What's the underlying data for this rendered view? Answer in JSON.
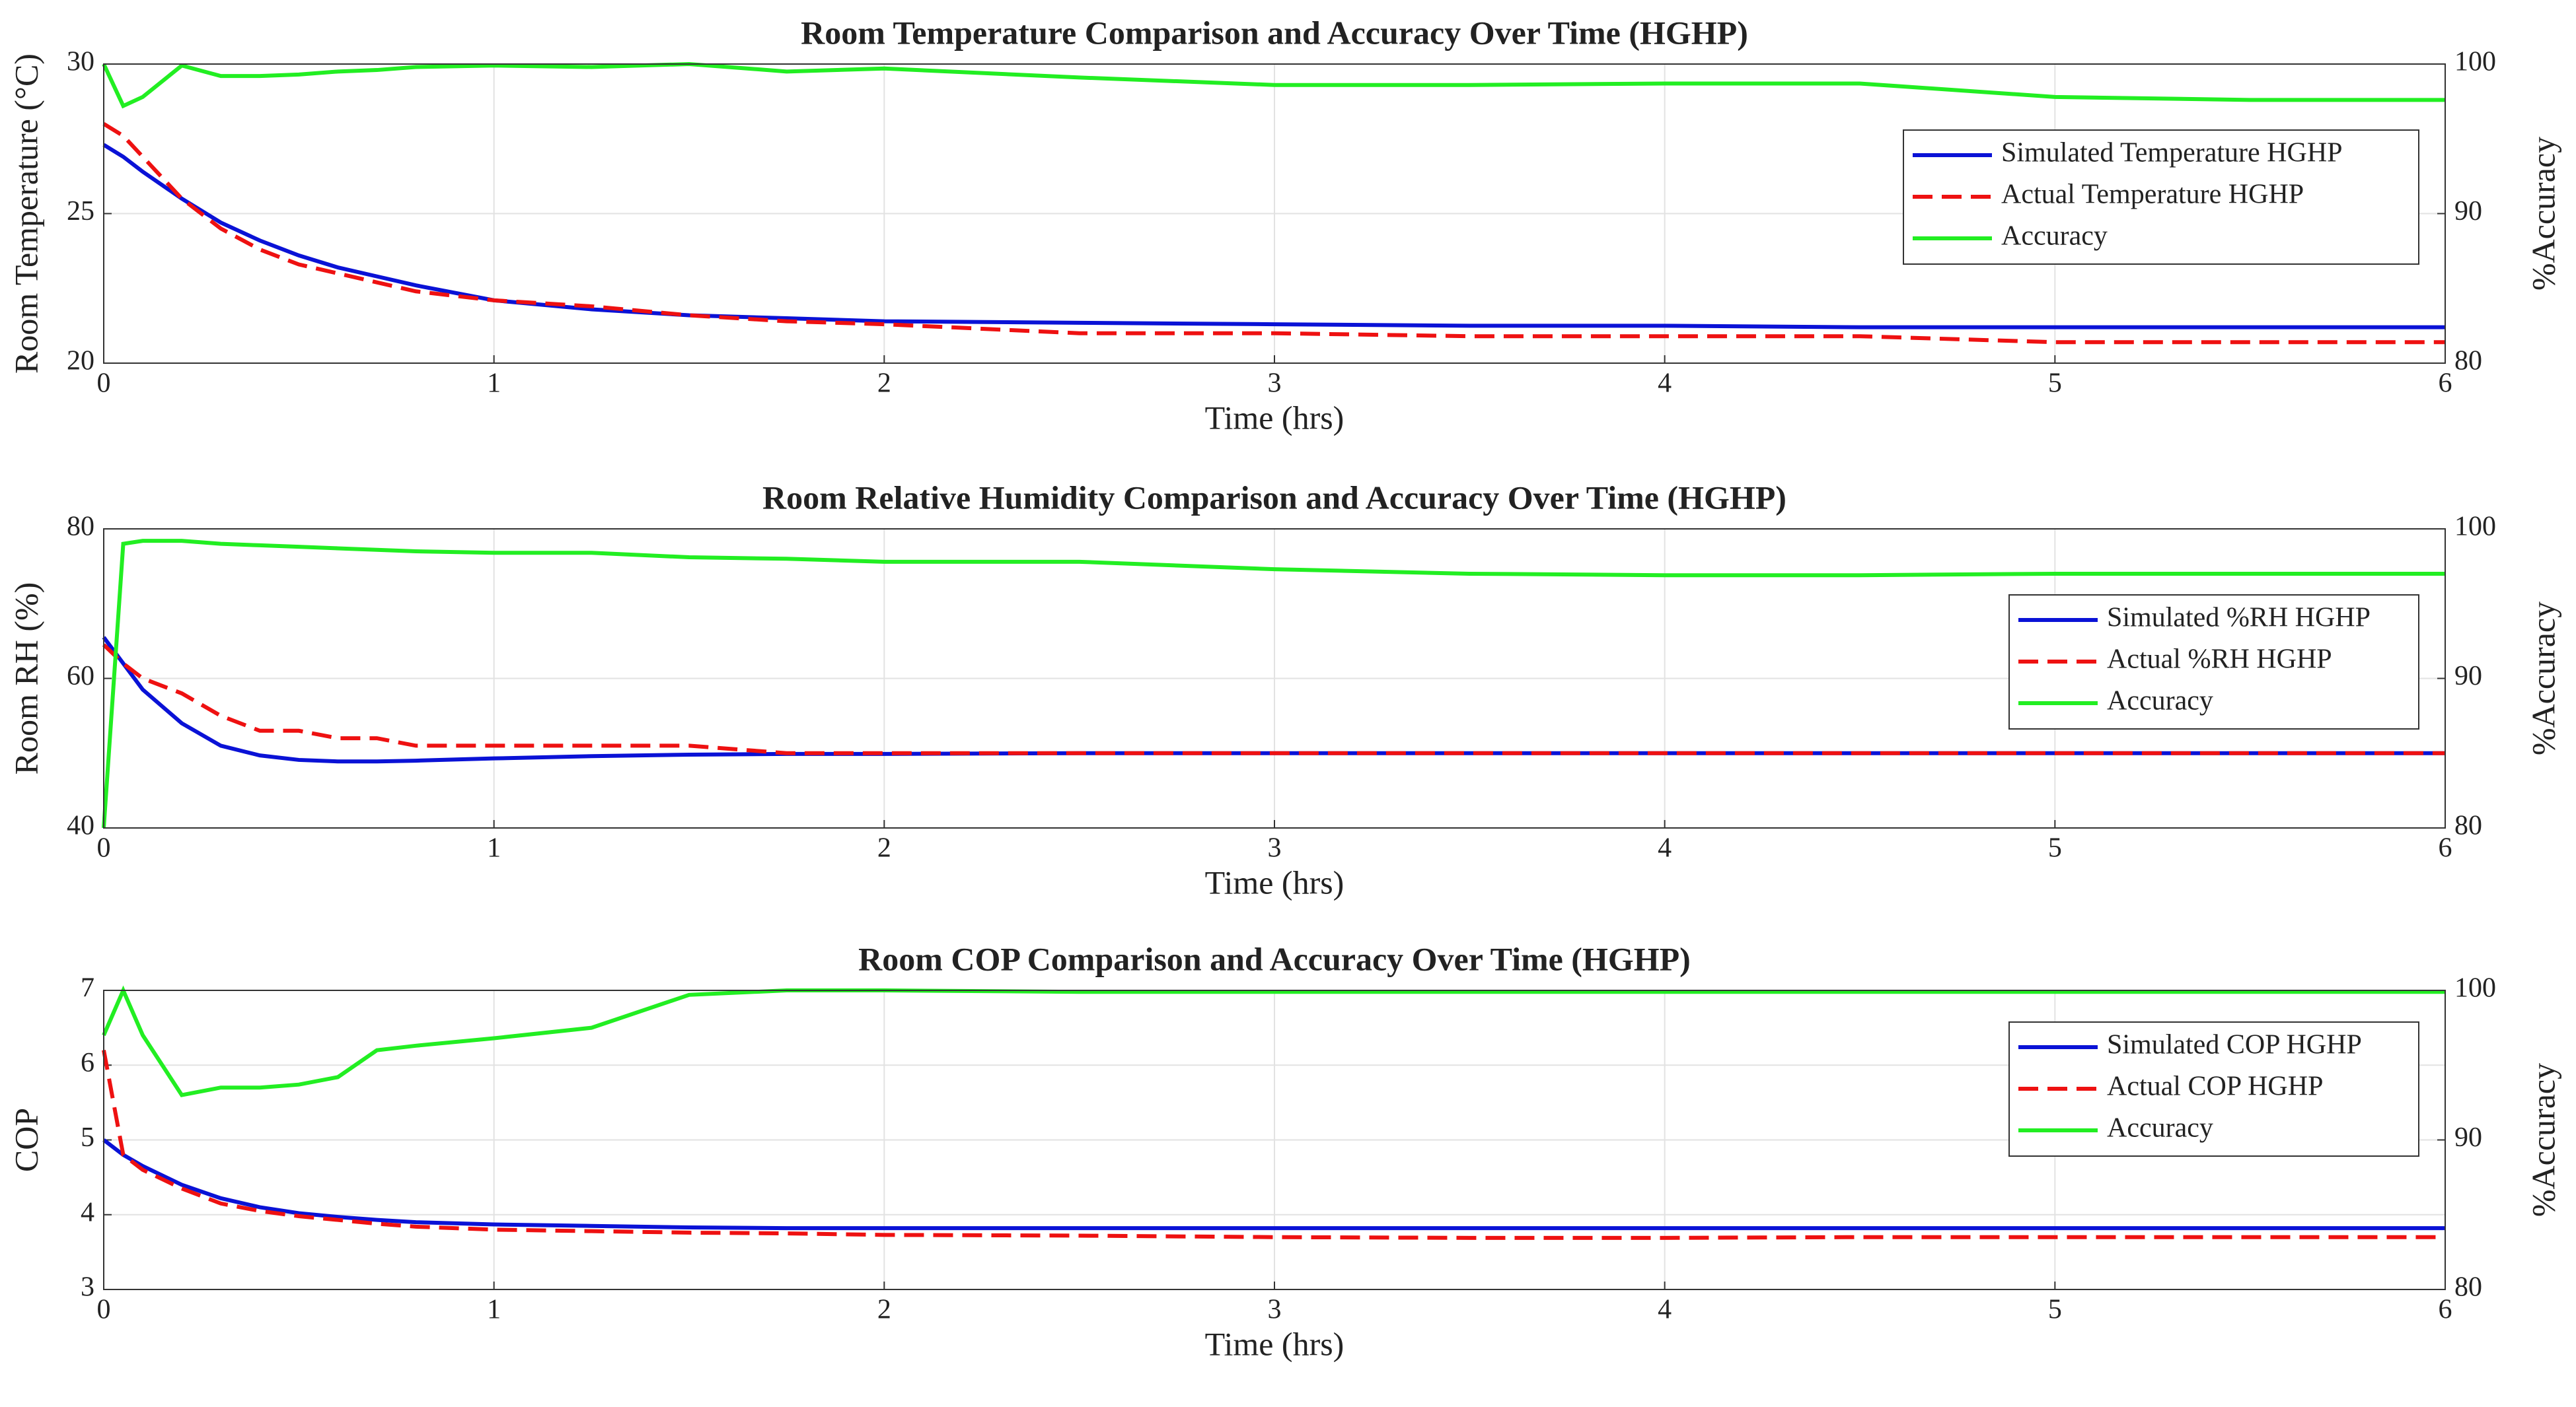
{
  "chart_data": [
    {
      "type": "line",
      "title": "Room Temperature Comparison and Accuracy Over Time (HGHP)",
      "x_label": "Time (hrs)",
      "y_label": "Room Temperature (°C)",
      "y2_label": "%Accuracy",
      "x": [
        0,
        0.05,
        0.1,
        0.2,
        0.3,
        0.4,
        0.5,
        0.6,
        0.7,
        0.8,
        1,
        1.25,
        1.5,
        1.75,
        2,
        2.5,
        3,
        3.5,
        4,
        4.5,
        5,
        5.5,
        6
      ],
      "series": [
        {
          "name": "Simulated Temperature HGHP",
          "color": "#0a12d6",
          "line_style": "solid",
          "values": [
            27.3,
            26.9,
            26.4,
            25.5,
            24.7,
            24.1,
            23.6,
            23.2,
            22.9,
            22.6,
            22.1,
            21.8,
            21.6,
            21.5,
            21.4,
            21.35,
            21.3,
            21.25,
            21.25,
            21.2,
            21.2,
            21.2,
            21.2
          ]
        },
        {
          "name": "Actual Temperature HGHP",
          "color": "#ee1111",
          "line_style": "dashed",
          "values": [
            28.0,
            27.6,
            26.9,
            25.5,
            24.5,
            23.8,
            23.3,
            23.0,
            22.7,
            22.4,
            22.1,
            21.9,
            21.6,
            21.4,
            21.3,
            21.0,
            21.0,
            20.9,
            20.9,
            20.9,
            20.7,
            20.7,
            20.7
          ]
        },
        {
          "name": "Accuracy",
          "color": "#22ee22",
          "line_style": "solid",
          "axis": "y2",
          "values": [
            100,
            97.2,
            97.8,
            99.9,
            99.2,
            99.2,
            99.3,
            99.5,
            99.6,
            99.8,
            99.9,
            99.8,
            100,
            99.5,
            99.7,
            99.1,
            98.6,
            98.6,
            98.7,
            98.7,
            97.8,
            97.6,
            97.6
          ]
        }
      ],
      "xlim": [
        0,
        6
      ],
      "xticks": [
        0,
        1,
        2,
        3,
        4,
        5,
        6
      ],
      "ylim": [
        20,
        30
      ],
      "yticks": [
        20,
        25,
        30
      ],
      "y2lim": [
        80,
        100
      ],
      "y2ticks": [
        80,
        90,
        100
      ],
      "grid": true,
      "legend": "right"
    },
    {
      "type": "line",
      "title": "Room Relative Humidity Comparison and Accuracy Over Time (HGHP)",
      "x_label": "Time (hrs)",
      "y_label": "Room RH (%)",
      "y2_label": "%Accuracy",
      "x": [
        0,
        0.05,
        0.1,
        0.2,
        0.3,
        0.4,
        0.5,
        0.6,
        0.7,
        0.8,
        1,
        1.25,
        1.5,
        1.75,
        2,
        2.5,
        3,
        3.5,
        4,
        4.5,
        5,
        5.5,
        6
      ],
      "series": [
        {
          "name": "Simulated %RH HGHP",
          "color": "#0a12d6",
          "line_style": "solid",
          "values": [
            65.5,
            62,
            58.5,
            54,
            51,
            49.7,
            49.1,
            48.9,
            48.9,
            49.0,
            49.3,
            49.6,
            49.8,
            49.9,
            49.9,
            50,
            50,
            50,
            50,
            50,
            50,
            50,
            50
          ]
        },
        {
          "name": "Actual %RH HGHP",
          "color": "#ee1111",
          "line_style": "dashed",
          "values": [
            64.5,
            62,
            60,
            58,
            55,
            53,
            53,
            52,
            52,
            51,
            51,
            51,
            51,
            50,
            50,
            50,
            50,
            50,
            50,
            50,
            50,
            50,
            50
          ]
        },
        {
          "name": "Accuracy",
          "color": "#22ee22",
          "line_style": "solid",
          "axis": "y2",
          "values": [
            80,
            99.0,
            99.2,
            99.2,
            99.0,
            98.9,
            98.8,
            98.7,
            98.6,
            98.5,
            98.4,
            98.4,
            98.1,
            98.0,
            97.8,
            97.8,
            97.3,
            97.0,
            96.9,
            96.9,
            97.0,
            97.0,
            97.0
          ]
        }
      ],
      "xlim": [
        0,
        6
      ],
      "xticks": [
        0,
        1,
        2,
        3,
        4,
        5,
        6
      ],
      "ylim": [
        40,
        80
      ],
      "yticks": [
        40,
        60,
        80
      ],
      "y2lim": [
        80,
        100
      ],
      "y2ticks": [
        80,
        90,
        100
      ],
      "grid": true,
      "legend": "right"
    },
    {
      "type": "line",
      "title": "Room COP Comparison and Accuracy Over Time (HGHP)",
      "x_label": "Time (hrs)",
      "y_label": "COP",
      "y2_label": "%Accuracy",
      "x": [
        0,
        0.05,
        0.1,
        0.2,
        0.3,
        0.4,
        0.5,
        0.6,
        0.7,
        0.8,
        1,
        1.25,
        1.5,
        1.75,
        2,
        2.5,
        3,
        3.5,
        4,
        4.5,
        5,
        5.5,
        6
      ],
      "series": [
        {
          "name": "Simulated COP HGHP",
          "color": "#0a12d6",
          "line_style": "solid",
          "values": [
            5.0,
            4.8,
            4.65,
            4.4,
            4.22,
            4.1,
            4.02,
            3.97,
            3.93,
            3.9,
            3.87,
            3.85,
            3.83,
            3.82,
            3.82,
            3.82,
            3.82,
            3.82,
            3.82,
            3.82,
            3.82,
            3.82,
            3.82
          ]
        },
        {
          "name": "Actual COP HGHP",
          "color": "#ee1111",
          "line_style": "dashed",
          "values": [
            6.2,
            4.8,
            4.6,
            4.35,
            4.15,
            4.05,
            3.98,
            3.93,
            3.88,
            3.84,
            3.8,
            3.78,
            3.76,
            3.75,
            3.73,
            3.72,
            3.7,
            3.69,
            3.69,
            3.7,
            3.7,
            3.7,
            3.7
          ]
        },
        {
          "name": "Accuracy",
          "color": "#22ee22",
          "line_style": "solid",
          "axis": "y2",
          "values": [
            97,
            100,
            97,
            93,
            93.5,
            93.5,
            93.7,
            94.2,
            96,
            96.3,
            96.8,
            97.5,
            99.7,
            100,
            100,
            99.9,
            99.9,
            99.9,
            99.9,
            99.9,
            99.9,
            99.9,
            99.9
          ]
        }
      ],
      "xlim": [
        0,
        6
      ],
      "xticks": [
        0,
        1,
        2,
        3,
        4,
        5,
        6
      ],
      "ylim": [
        3,
        7
      ],
      "yticks": [
        3,
        4,
        5,
        6,
        7
      ],
      "y2lim": [
        80,
        100
      ],
      "y2ticks": [
        80,
        90,
        100
      ],
      "grid": true,
      "legend": "right"
    }
  ]
}
